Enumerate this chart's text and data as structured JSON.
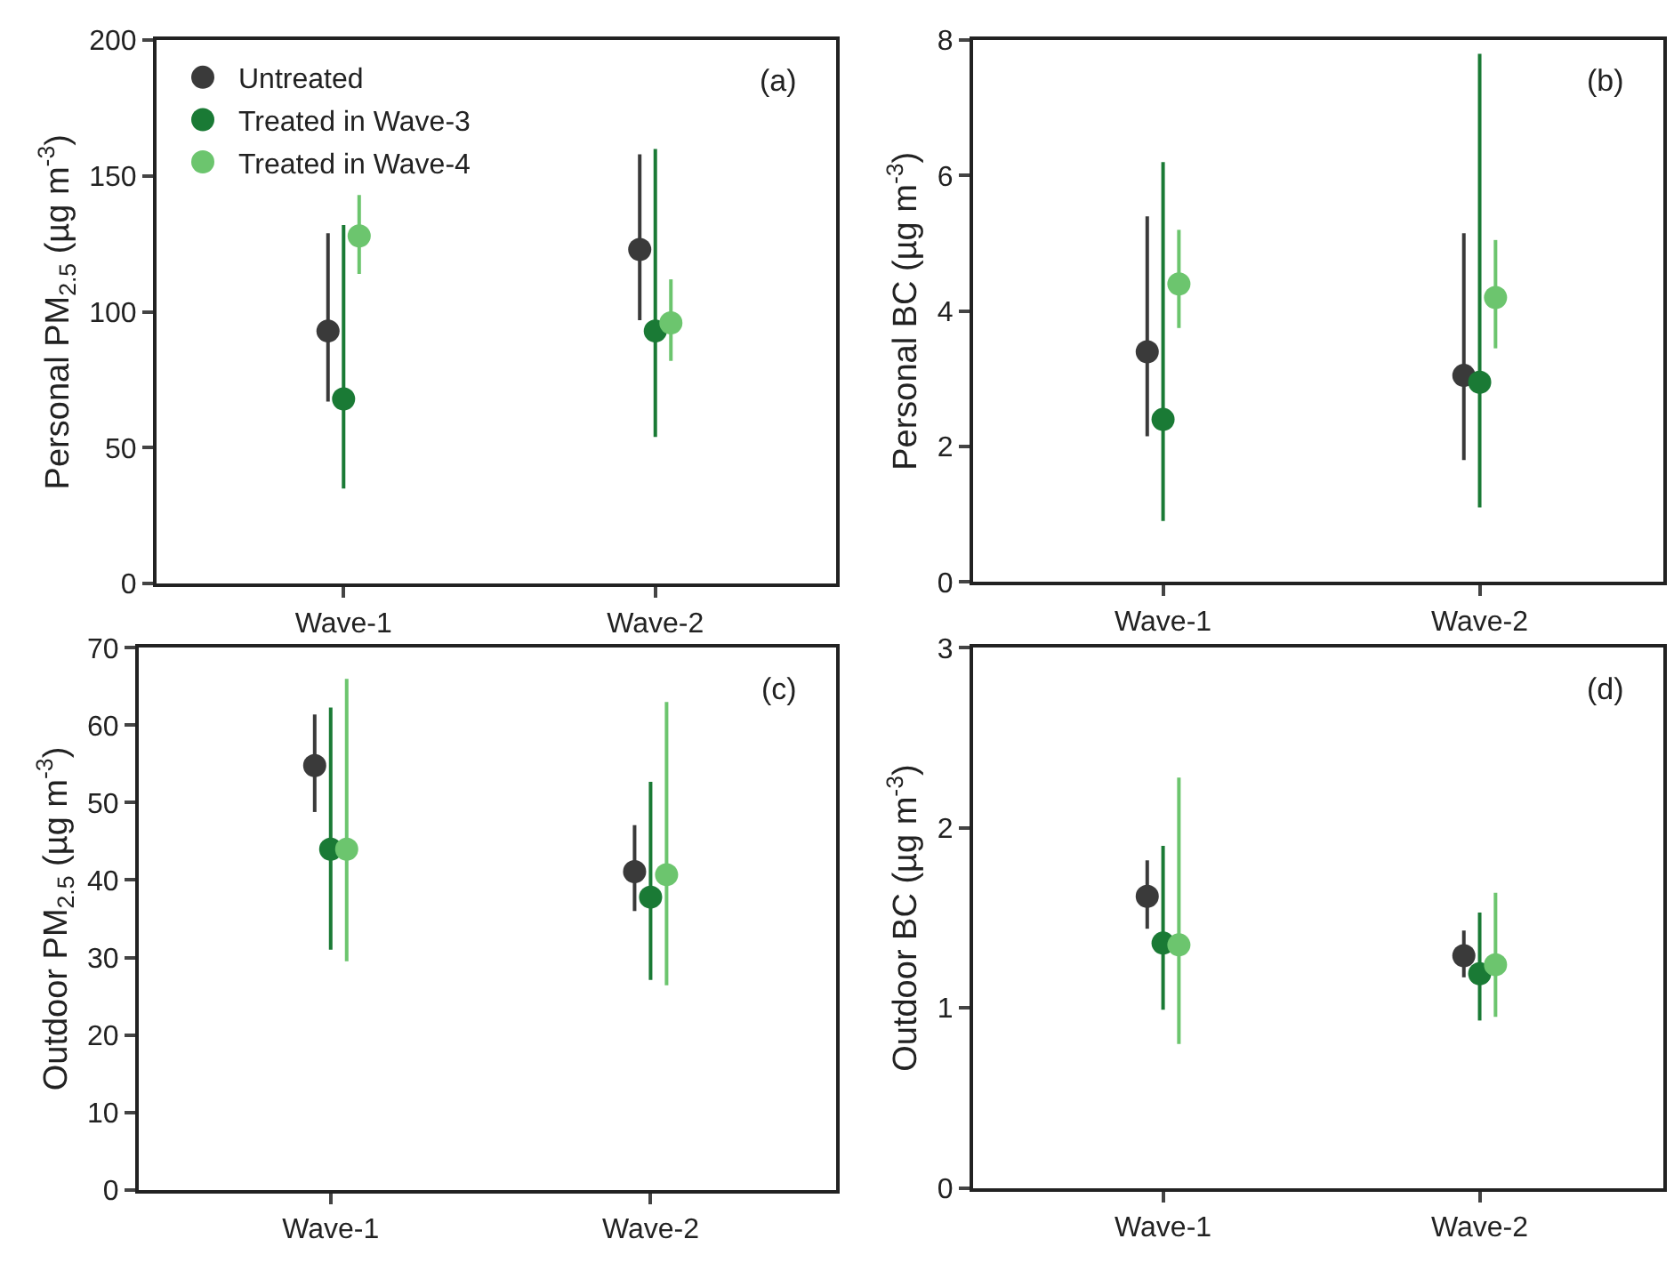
{
  "chart_data": [
    {
      "type": "scatter",
      "ylabel": "Personal PM$_{2.5}$ (µg m$^{-3}$)",
      "annotations": [
        "(a)"
      ],
      "categories": [
        "Wave-1",
        "Wave-2"
      ],
      "ylim": [
        0,
        200
      ],
      "yticks": [
        0,
        50,
        100,
        150,
        200
      ],
      "legend": "top left",
      "marker": "circle",
      "series": [
        {
          "name": "Untreated",
          "color": "#3a3a3a",
          "values": [
            93,
            123
          ],
          "errors": [
            [
              67,
              129
            ],
            [
              97,
              158
            ]
          ]
        },
        {
          "name": "Treated in Wave-3",
          "color": "#1a7a35",
          "values": [
            68,
            93
          ],
          "errors": [
            [
              35,
              132
            ],
            [
              54,
              160
            ]
          ]
        },
        {
          "name": "Treated in Wave-4",
          "color": "#6cc56e",
          "values": [
            128,
            96
          ],
          "errors": [
            [
              114,
              143
            ],
            [
              82,
              112
            ]
          ]
        }
      ]
    },
    {
      "type": "scatter",
      "ylabel": "Personal BC (µg m$^{-3}$)",
      "annotations": [
        "(b)"
      ],
      "categories": [
        "Wave-1",
        "Wave-2"
      ],
      "ylim": [
        0,
        8
      ],
      "yticks": [
        0,
        2,
        4,
        6,
        8
      ],
      "marker": "circle",
      "series": [
        {
          "color": "#3a3a3a",
          "values": [
            3.4,
            3.05
          ],
          "errors": [
            [
              2.15,
              5.4
            ],
            [
              1.8,
              5.15
            ]
          ]
        },
        {
          "color": "#1a7a35",
          "values": [
            2.4,
            2.95
          ],
          "errors": [
            [
              0.9,
              6.2
            ],
            [
              1.1,
              7.8
            ]
          ]
        },
        {
          "color": "#6cc56e",
          "values": [
            4.4,
            4.2
          ],
          "errors": [
            [
              3.75,
              5.2
            ],
            [
              3.45,
              5.05
            ]
          ]
        }
      ]
    },
    {
      "type": "scatter",
      "ylabel": "Outdoor PM$_{2.5}$ (µg m$^{-3}$)",
      "annotations": [
        "(c)"
      ],
      "categories": [
        "Wave-1",
        "Wave-2"
      ],
      "ylim": [
        0,
        70
      ],
      "yticks": [
        0,
        10,
        20,
        30,
        40,
        50,
        60,
        70
      ],
      "marker": "circle",
      "series": [
        {
          "color": "#3a3a3a",
          "values": [
            54.8,
            41.1
          ],
          "errors": [
            [
              48.8,
              61.4
            ],
            [
              36,
              47.1
            ]
          ]
        },
        {
          "color": "#1a7a35",
          "values": [
            44,
            37.8
          ],
          "errors": [
            [
              31,
              62.3
            ],
            [
              27.1,
              52.7
            ]
          ]
        },
        {
          "color": "#6cc56e",
          "values": [
            44,
            40.7
          ],
          "errors": [
            [
              29.5,
              66
            ],
            [
              26.4,
              63
            ]
          ]
        }
      ]
    },
    {
      "type": "scatter",
      "ylabel": "Outdoor BC (µg m$^{-3}$)",
      "annotations": [
        "(d)"
      ],
      "categories": [
        "Wave-1",
        "Wave-2"
      ],
      "ylim": [
        0,
        3
      ],
      "yticks": [
        0,
        1,
        2,
        3
      ],
      "marker": "circle",
      "series": [
        {
          "color": "#3a3a3a",
          "values": [
            1.62,
            1.29
          ],
          "errors": [
            [
              1.44,
              1.82
            ],
            [
              1.17,
              1.43
            ]
          ]
        },
        {
          "color": "#1a7a35",
          "values": [
            1.36,
            1.19
          ],
          "errors": [
            [
              0.99,
              1.9
            ],
            [
              0.93,
              1.53
            ]
          ]
        },
        {
          "color": "#6cc56e",
          "values": [
            1.35,
            1.24
          ],
          "errors": [
            [
              0.8,
              2.28
            ],
            [
              0.95,
              1.64
            ]
          ]
        }
      ]
    }
  ]
}
